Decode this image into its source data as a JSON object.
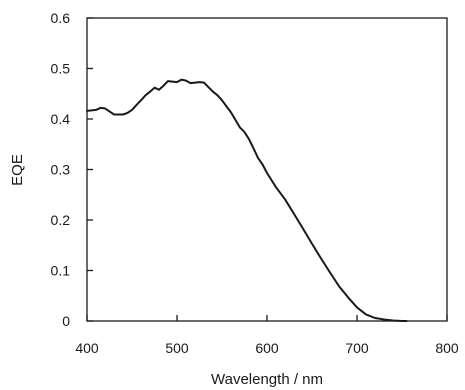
{
  "chart_data": {
    "type": "line",
    "title": "",
    "xlabel": "Wavelength / nm",
    "ylabel": "EQE",
    "xlim": [
      400,
      800
    ],
    "ylim": [
      0,
      0.6
    ],
    "x_ticks": [
      "400",
      "500",
      "600",
      "700",
      "800"
    ],
    "y_ticks": [
      "0",
      "0.1",
      "0.2",
      "0.3",
      "0.4",
      "0.5",
      "0.6"
    ],
    "grid": false,
    "legend": "none",
    "line_color": "#1a1a1a",
    "series": [
      {
        "x": [
          400,
          405,
          410,
          415,
          420,
          425,
          430,
          435,
          440,
          445,
          450,
          455,
          460,
          465,
          470,
          475,
          480,
          485,
          490,
          495,
          500,
          505,
          510,
          515,
          520,
          525,
          530,
          535,
          540,
          545,
          550,
          555,
          560,
          565,
          570,
          575,
          580,
          585,
          590,
          595,
          600,
          610,
          620,
          630,
          640,
          650,
          660,
          670,
          680,
          690,
          700,
          710,
          720,
          730,
          740,
          750,
          755
        ],
        "y": [
          0.416,
          0.417,
          0.418,
          0.422,
          0.421,
          0.415,
          0.409,
          0.409,
          0.409,
          0.412,
          0.418,
          0.428,
          0.437,
          0.447,
          0.454,
          0.462,
          0.458,
          0.466,
          0.475,
          0.474,
          0.473,
          0.478,
          0.476,
          0.471,
          0.472,
          0.473,
          0.472,
          0.463,
          0.454,
          0.447,
          0.437,
          0.425,
          0.413,
          0.398,
          0.383,
          0.374,
          0.36,
          0.342,
          0.323,
          0.31,
          0.293,
          0.265,
          0.241,
          0.212,
          0.183,
          0.153,
          0.124,
          0.096,
          0.069,
          0.047,
          0.027,
          0.013,
          0.006,
          0.003,
          0.001,
          0.0,
          0.0
        ]
      }
    ]
  }
}
